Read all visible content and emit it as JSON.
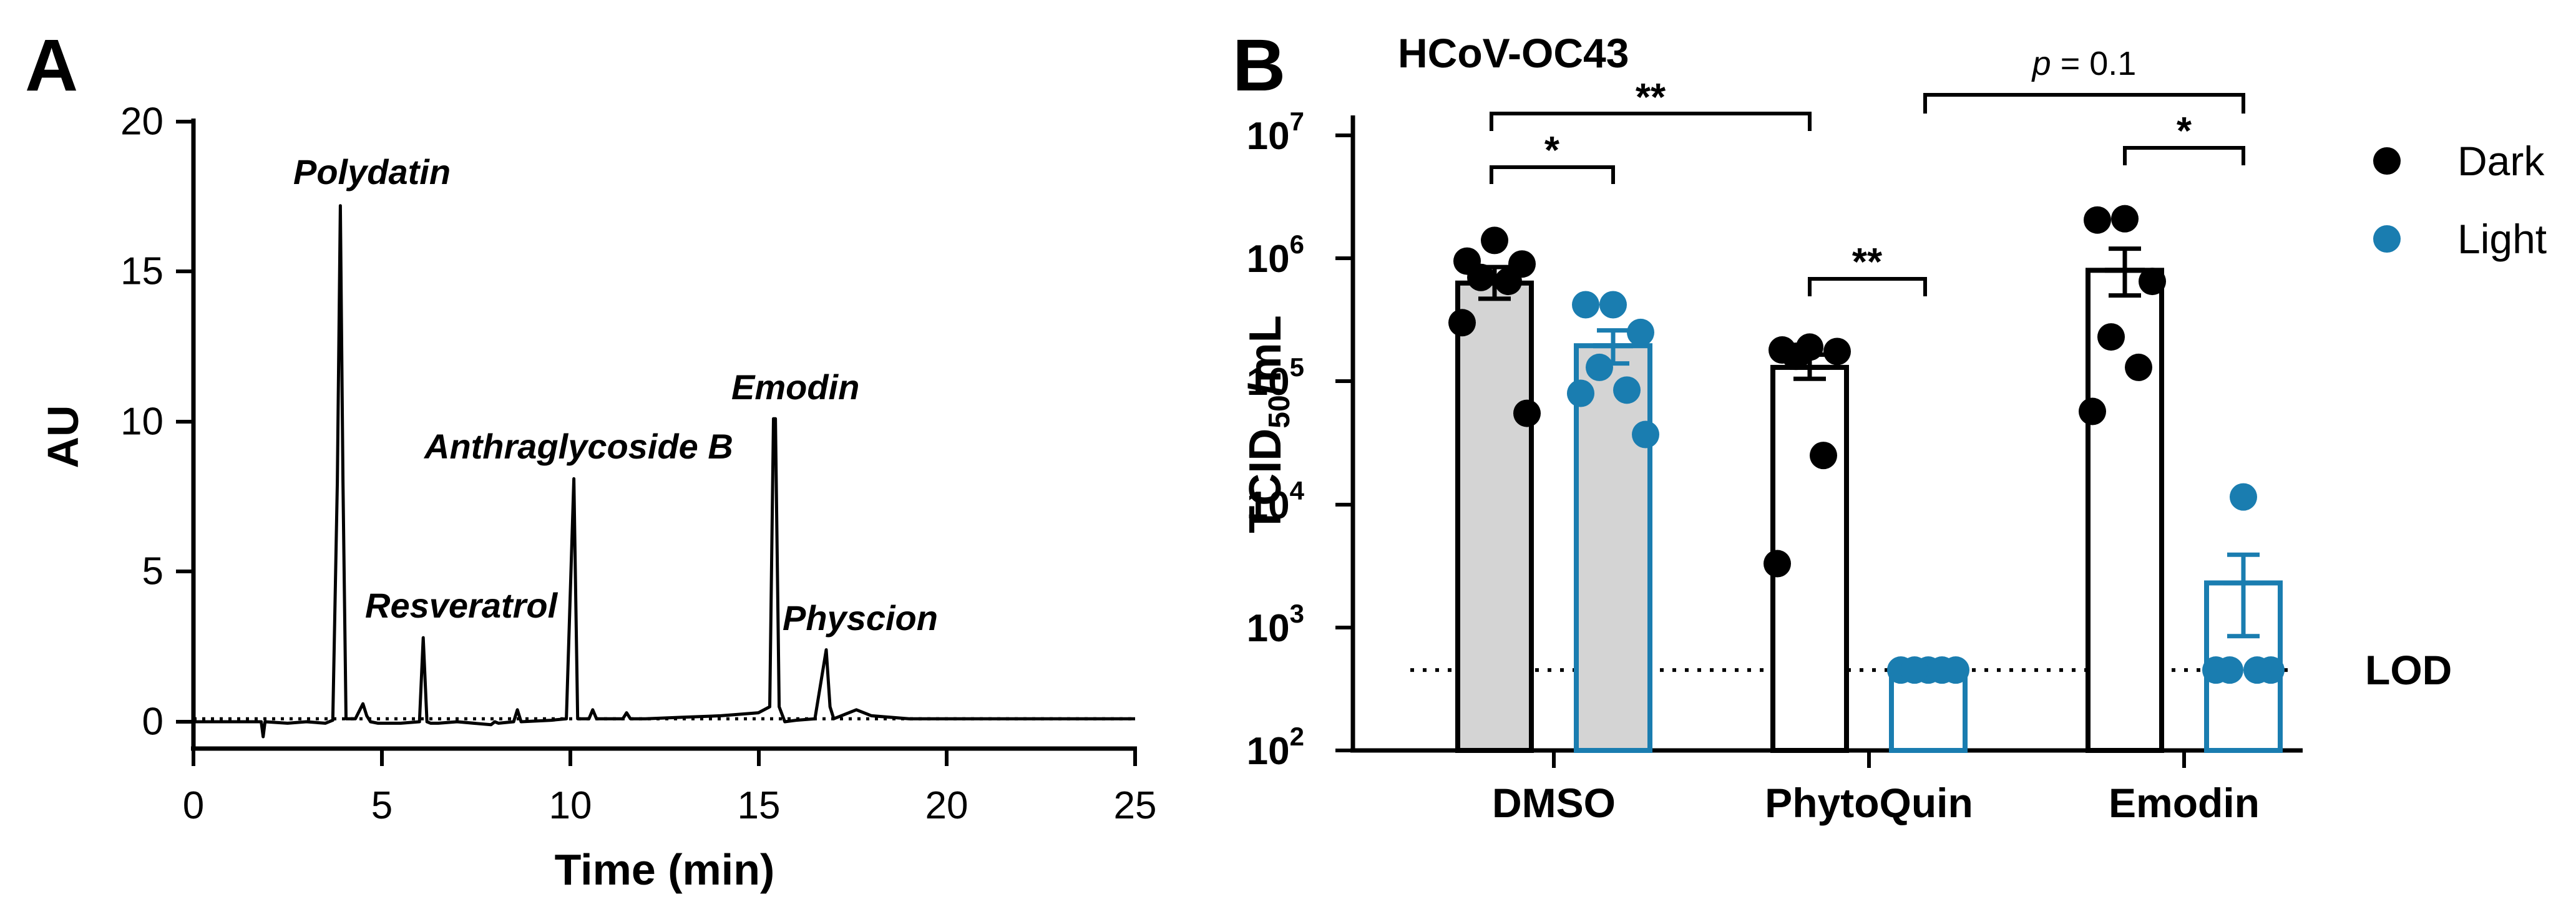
{
  "panels": {
    "a_label": "A",
    "b_label": "B"
  },
  "colors": {
    "dark": "#000000",
    "light": "#1a7db0",
    "dmso_fill": "#d4d4d4"
  },
  "chart_data": [
    {
      "type": "line",
      "panel": "A",
      "title": "",
      "xlabel": "Time (min)",
      "ylabel": "AU",
      "xlim": [
        0,
        25
      ],
      "ylim": [
        -1,
        20
      ],
      "xticks": [
        "0",
        "5",
        "10",
        "15",
        "20",
        "25"
      ],
      "yticks": [
        "0",
        "5",
        "10",
        "15",
        "20"
      ],
      "baseline_value": 0.1,
      "series": [
        {
          "name": "chromatogram",
          "x": [
            0,
            1.8,
            1.85,
            1.9,
            2.5,
            3.0,
            3.5,
            3.7,
            3.82,
            3.9,
            3.97,
            4.05,
            4.3,
            4.5,
            4.6,
            4.7,
            4.9,
            5.5,
            6.0,
            6.1,
            6.2,
            6.3,
            6.5,
            7.0,
            7.9,
            8.0,
            8.1,
            8.5,
            8.6,
            8.7,
            9.5,
            9.9,
            10.1,
            10.2,
            10.3,
            10.5,
            10.6,
            10.7,
            11.0,
            11.4,
            11.5,
            11.6,
            12.0,
            13.0,
            14.0,
            15.0,
            15.3,
            15.4,
            15.45,
            15.55,
            15.7,
            16.0,
            16.5,
            16.8,
            16.9,
            17.0,
            17.2,
            17.6,
            18.0,
            19.0,
            20.0,
            25.0
          ],
          "y": [
            0,
            0,
            -0.5,
            0,
            -0.05,
            0,
            -0.05,
            0.05,
            8.0,
            17.2,
            8.0,
            0.1,
            0.1,
            0.6,
            0.2,
            0.0,
            -0.05,
            -0.05,
            0.0,
            2.8,
            0.0,
            -0.05,
            -0.05,
            0.0,
            -0.1,
            0.0,
            -0.05,
            0.0,
            0.4,
            0.0,
            0.05,
            0.1,
            8.1,
            0.1,
            0.1,
            0.1,
            0.4,
            0.1,
            0.1,
            0.1,
            0.3,
            0.1,
            0.1,
            0.15,
            0.2,
            0.3,
            0.5,
            10.1,
            10.1,
            0.5,
            0.0,
            0.05,
            0.1,
            2.4,
            0.5,
            0.1,
            0.2,
            0.4,
            0.2,
            0.1,
            0.1,
            0.1
          ]
        }
      ],
      "annotations": [
        {
          "text": "Polydatin",
          "x": 4.7,
          "y": 18.3
        },
        {
          "text": "Resveratrol",
          "x": 6.1,
          "y": 6.9
        },
        {
          "text": "Anthraglycoside B",
          "x": 10.6,
          "y": 18.3
        },
        {
          "text": "Emodin",
          "x": 15.0,
          "y": 21.5
        },
        {
          "text": "Physcion",
          "x": 17.0,
          "y": 5.6
        }
      ]
    },
    {
      "type": "bar",
      "panel": "B",
      "title": "HCoV-OC43",
      "xlabel": "",
      "ylabel_main": "TCID",
      "ylabel_sub": "50",
      "ylabel_unit": "/mL",
      "yscale": "log",
      "ylim": [
        100,
        10000000
      ],
      "yticks": [
        {
          "base": "10",
          "exp": "2"
        },
        {
          "base": "10",
          "exp": "3"
        },
        {
          "base": "10",
          "exp": "4"
        },
        {
          "base": "10",
          "exp": "5"
        },
        {
          "base": "10",
          "exp": "6"
        },
        {
          "base": "10",
          "exp": "7"
        }
      ],
      "categories": [
        "DMSO",
        "PhytoQuin",
        "Emodin"
      ],
      "lod_value": 450,
      "lod_label": "LOD",
      "legend": [
        {
          "name": "Dark",
          "color": "#000000"
        },
        {
          "name": "Light",
          "color": "#1a7db0"
        }
      ],
      "series": [
        {
          "name": "Dark",
          "values": [
            630000,
            130000,
            800000
          ],
          "sem_low": [
            470000,
            105000,
            500000
          ],
          "sem_high": [
            850000,
            165000,
            1200000
          ],
          "points": [
            [
              1400000,
              950000,
              900000,
              700000,
              650000,
              300000,
              55000
            ],
            [
              190000,
              180000,
              175000,
              160000,
              25000,
              3300
            ],
            [
              2100000,
              2050000,
              650000,
              230000,
              130000,
              57000
            ]
          ]
        },
        {
          "name": "Light",
          "values": [
            195000,
            450,
            2300
          ],
          "sem_low": [
            140000,
            450,
            850
          ],
          "sem_high": [
            260000,
            450,
            3900
          ],
          "points": [
            [
              420000,
              420000,
              250000,
              130000,
              85000,
              80000,
              37000
            ],
            [
              450,
              450,
              450,
              450,
              450
            ],
            [
              11500,
              450,
              450,
              450,
              450
            ]
          ]
        }
      ],
      "significance": [
        {
          "label": "*",
          "from": "DMSO-Dark",
          "to": "DMSO-Light"
        },
        {
          "label": "**",
          "from": "DMSO-Dark",
          "to": "PhytoQuin-Dark"
        },
        {
          "label": "**",
          "from": "PhytoQuin-Dark",
          "to": "PhytoQuin-Light"
        },
        {
          "label_p": "p",
          "label_rest": " = 0.1",
          "from": "PhytoQuin-Light",
          "to": "Emodin-Light"
        },
        {
          "label": "*",
          "from": "Emodin-Dark",
          "to": "Emodin-Light"
        }
      ]
    }
  ]
}
